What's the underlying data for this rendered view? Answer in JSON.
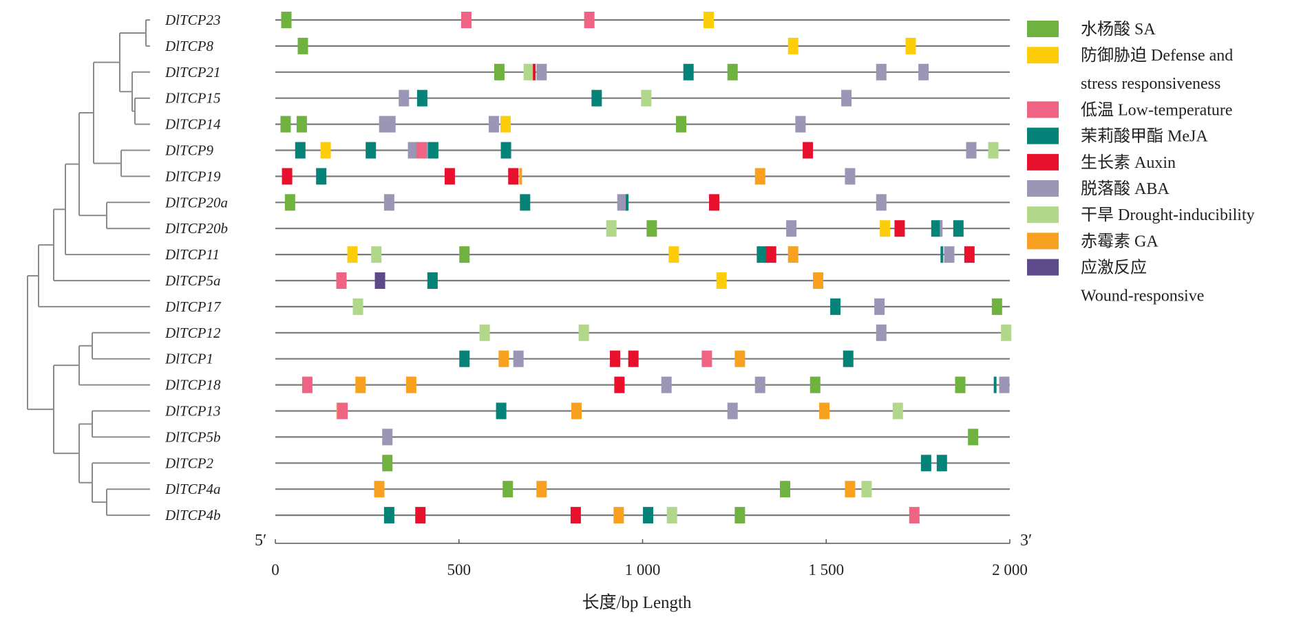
{
  "axis": {
    "min": 0,
    "max": 2000,
    "ticks": [
      {
        "value": 0,
        "label": "0"
      },
      {
        "value": 500,
        "label": "500"
      },
      {
        "value": 1000,
        "label": "1 000"
      },
      {
        "value": 1500,
        "label": "1 500"
      },
      {
        "value": 2000,
        "label": "2 000"
      }
    ],
    "title": "长度/bp   Length",
    "left_end": "5′",
    "right_end": "3′"
  },
  "legend": [
    {
      "key": "SA",
      "color": "#70b23f",
      "lines": [
        "水杨酸 SA"
      ]
    },
    {
      "key": "defense",
      "color": "#fecd0a",
      "lines": [
        "防御胁迫 Defense and",
        "stress responsiveness"
      ]
    },
    {
      "key": "low_temp",
      "color": "#f06483",
      "lines": [
        "低温 Low-temperature"
      ]
    },
    {
      "key": "MeJA",
      "color": "#058378",
      "lines": [
        "茉莉酸甲酯 MeJA"
      ]
    },
    {
      "key": "auxin",
      "color": "#e8112d",
      "lines": [
        "生长素 Auxin"
      ]
    },
    {
      "key": "ABA",
      "color": "#9b96b6",
      "lines": [
        "脱落酸 ABA"
      ]
    },
    {
      "key": "drought",
      "color": "#b1d88a",
      "lines": [
        "干旱 Drought-inducibility"
      ]
    },
    {
      "key": "GA",
      "color": "#f8a120",
      "lines": [
        "赤霉素 GA"
      ]
    },
    {
      "key": "wound",
      "color": "#5d4a8b",
      "lines": [
        "应激反应",
        "Wound-responsive"
      ]
    }
  ],
  "genes": [
    {
      "name": "DlTCP23",
      "elements": [
        {
          "pos": 30,
          "type": "SA"
        },
        {
          "pos": 520,
          "type": "low_temp"
        },
        {
          "pos": 855,
          "type": "low_temp"
        },
        {
          "pos": 1180,
          "type": "defense"
        }
      ]
    },
    {
      "name": "DlTCP8",
      "elements": [
        {
          "pos": 75,
          "type": "SA"
        },
        {
          "pos": 1410,
          "type": "defense"
        },
        {
          "pos": 1730,
          "type": "defense"
        }
      ]
    },
    {
      "name": "DlTCP21",
      "elements": [
        {
          "pos": 610,
          "type": "SA"
        },
        {
          "pos": 690,
          "type": "drought"
        },
        {
          "pos": 705,
          "type": "auxin",
          "narrow": true
        },
        {
          "pos": 725,
          "type": "ABA"
        },
        {
          "pos": 1125,
          "type": "MeJA"
        },
        {
          "pos": 1245,
          "type": "SA"
        },
        {
          "pos": 1650,
          "type": "ABA"
        },
        {
          "pos": 1765,
          "type": "ABA"
        }
      ]
    },
    {
      "name": "DlTCP15",
      "elements": [
        {
          "pos": 350,
          "type": "ABA"
        },
        {
          "pos": 400,
          "type": "MeJA"
        },
        {
          "pos": 875,
          "type": "MeJA"
        },
        {
          "pos": 1010,
          "type": "drought"
        },
        {
          "pos": 1555,
          "type": "ABA"
        }
      ]
    },
    {
      "name": "DlTCP14",
      "elements": [
        {
          "pos": 28,
          "type": "SA"
        },
        {
          "pos": 72,
          "type": "SA"
        },
        {
          "pos": 305,
          "type": "ABA",
          "wide": true
        },
        {
          "pos": 595,
          "type": "ABA"
        },
        {
          "pos": 627,
          "type": "defense"
        },
        {
          "pos": 1105,
          "type": "SA"
        },
        {
          "pos": 1430,
          "type": "ABA"
        }
      ]
    },
    {
      "name": "DlTCP9",
      "elements": [
        {
          "pos": 68,
          "type": "MeJA"
        },
        {
          "pos": 137,
          "type": "defense"
        },
        {
          "pos": 260,
          "type": "MeJA"
        },
        {
          "pos": 375,
          "type": "ABA"
        },
        {
          "pos": 398,
          "type": "low_temp"
        },
        {
          "pos": 415,
          "type": "ABA",
          "narrow": true
        },
        {
          "pos": 430,
          "type": "MeJA"
        },
        {
          "pos": 628,
          "type": "MeJA"
        },
        {
          "pos": 1450,
          "type": "auxin"
        },
        {
          "pos": 1895,
          "type": "ABA"
        },
        {
          "pos": 1955,
          "type": "drought"
        }
      ]
    },
    {
      "name": "DlTCP19",
      "elements": [
        {
          "pos": 32,
          "type": "auxin"
        },
        {
          "pos": 125,
          "type": "MeJA"
        },
        {
          "pos": 475,
          "type": "auxin"
        },
        {
          "pos": 648,
          "type": "auxin"
        },
        {
          "pos": 668,
          "type": "GA",
          "narrow": true
        },
        {
          "pos": 1320,
          "type": "GA"
        },
        {
          "pos": 1565,
          "type": "ABA"
        }
      ]
    },
    {
      "name": "DlTCP20a",
      "elements": [
        {
          "pos": 40,
          "type": "SA"
        },
        {
          "pos": 310,
          "type": "ABA"
        },
        {
          "pos": 680,
          "type": "MeJA"
        },
        {
          "pos": 945,
          "type": "ABA"
        },
        {
          "pos": 958,
          "type": "MeJA",
          "narrow": true
        },
        {
          "pos": 1195,
          "type": "auxin"
        },
        {
          "pos": 1650,
          "type": "ABA"
        }
      ]
    },
    {
      "name": "DlTCP20b",
      "elements": [
        {
          "pos": 915,
          "type": "drought"
        },
        {
          "pos": 1025,
          "type": "SA"
        },
        {
          "pos": 1405,
          "type": "ABA"
        },
        {
          "pos": 1660,
          "type": "defense"
        },
        {
          "pos": 1700,
          "type": "auxin"
        },
        {
          "pos": 1800,
          "type": "MeJA"
        },
        {
          "pos": 1813,
          "type": "ABA",
          "narrow": true
        },
        {
          "pos": 1860,
          "type": "MeJA"
        }
      ]
    },
    {
      "name": "DlTCP11",
      "elements": [
        {
          "pos": 210,
          "type": "defense"
        },
        {
          "pos": 275,
          "type": "drought"
        },
        {
          "pos": 515,
          "type": "SA"
        },
        {
          "pos": 1085,
          "type": "defense"
        },
        {
          "pos": 1325,
          "type": "MeJA"
        },
        {
          "pos": 1350,
          "type": "auxin"
        },
        {
          "pos": 1410,
          "type": "GA"
        },
        {
          "pos": 1815,
          "type": "MeJA",
          "narrow": true
        },
        {
          "pos": 1835,
          "type": "ABA"
        },
        {
          "pos": 1890,
          "type": "auxin"
        }
      ]
    },
    {
      "name": "DlTCP5a",
      "elements": [
        {
          "pos": 180,
          "type": "low_temp"
        },
        {
          "pos": 285,
          "type": "wound"
        },
        {
          "pos": 428,
          "type": "MeJA"
        },
        {
          "pos": 1215,
          "type": "defense"
        },
        {
          "pos": 1478,
          "type": "GA"
        }
      ]
    },
    {
      "name": "DlTCP17",
      "elements": [
        {
          "pos": 225,
          "type": "drought"
        },
        {
          "pos": 1525,
          "type": "MeJA"
        },
        {
          "pos": 1645,
          "type": "ABA"
        },
        {
          "pos": 1965,
          "type": "SA"
        }
      ]
    },
    {
      "name": "DlTCP12",
      "elements": [
        {
          "pos": 570,
          "type": "drought"
        },
        {
          "pos": 840,
          "type": "drought"
        },
        {
          "pos": 1650,
          "type": "ABA"
        },
        {
          "pos": 1990,
          "type": "drought"
        }
      ]
    },
    {
      "name": "DlTCP1",
      "elements": [
        {
          "pos": 515,
          "type": "MeJA"
        },
        {
          "pos": 622,
          "type": "GA"
        },
        {
          "pos": 662,
          "type": "ABA"
        },
        {
          "pos": 925,
          "type": "auxin"
        },
        {
          "pos": 975,
          "type": "auxin"
        },
        {
          "pos": 1175,
          "type": "low_temp"
        },
        {
          "pos": 1265,
          "type": "GA"
        },
        {
          "pos": 1560,
          "type": "MeJA"
        }
      ]
    },
    {
      "name": "DlTCP18",
      "elements": [
        {
          "pos": 87,
          "type": "low_temp"
        },
        {
          "pos": 232,
          "type": "GA"
        },
        {
          "pos": 360,
          "type": "SA",
          "narrow": true
        },
        {
          "pos": 370,
          "type": "GA"
        },
        {
          "pos": 937,
          "type": "auxin"
        },
        {
          "pos": 1065,
          "type": "ABA"
        },
        {
          "pos": 1320,
          "type": "ABA"
        },
        {
          "pos": 1470,
          "type": "SA"
        },
        {
          "pos": 1865,
          "type": "SA"
        },
        {
          "pos": 1960,
          "type": "MeJA",
          "narrow": true
        },
        {
          "pos": 1985,
          "type": "ABA"
        }
      ]
    },
    {
      "name": "DlTCP13",
      "elements": [
        {
          "pos": 170,
          "type": "GA",
          "narrow": true
        },
        {
          "pos": 183,
          "type": "low_temp"
        },
        {
          "pos": 615,
          "type": "MeJA"
        },
        {
          "pos": 820,
          "type": "GA"
        },
        {
          "pos": 1245,
          "type": "ABA"
        },
        {
          "pos": 1495,
          "type": "GA"
        },
        {
          "pos": 1695,
          "type": "drought"
        }
      ]
    },
    {
      "name": "DlTCP5b",
      "elements": [
        {
          "pos": 305,
          "type": "ABA"
        },
        {
          "pos": 1900,
          "type": "SA"
        }
      ]
    },
    {
      "name": "DlTCP2",
      "elements": [
        {
          "pos": 305,
          "type": "SA"
        },
        {
          "pos": 1772,
          "type": "MeJA"
        },
        {
          "pos": 1815,
          "type": "MeJA"
        }
      ]
    },
    {
      "name": "DlTCP4a",
      "elements": [
        {
          "pos": 283,
          "type": "GA"
        },
        {
          "pos": 633,
          "type": "SA"
        },
        {
          "pos": 725,
          "type": "GA"
        },
        {
          "pos": 1388,
          "type": "SA"
        },
        {
          "pos": 1565,
          "type": "GA"
        },
        {
          "pos": 1610,
          "type": "drought"
        }
      ]
    },
    {
      "name": "DlTCP4b",
      "elements": [
        {
          "pos": 310,
          "type": "MeJA"
        },
        {
          "pos": 395,
          "type": "auxin"
        },
        {
          "pos": 818,
          "type": "auxin"
        },
        {
          "pos": 935,
          "type": "GA"
        },
        {
          "pos": 1015,
          "type": "MeJA"
        },
        {
          "pos": 1080,
          "type": "drought"
        },
        {
          "pos": 1265,
          "type": "SA"
        },
        {
          "pos": 1740,
          "type": "low_temp"
        }
      ]
    }
  ]
}
